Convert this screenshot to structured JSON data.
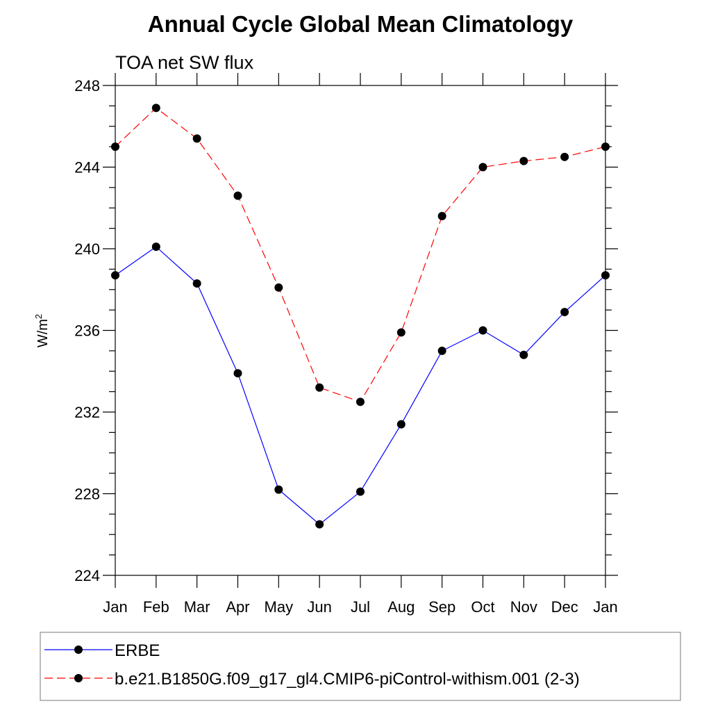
{
  "chart_data": {
    "type": "line",
    "title": "Annual Cycle Global Mean Climatology",
    "subtitle": "TOA net SW flux",
    "xlabel": "",
    "ylabel": "W/m",
    "ylabel_superscript": "2",
    "categories": [
      "Jan",
      "Feb",
      "Mar",
      "Apr",
      "May",
      "Jun",
      "Jul",
      "Aug",
      "Sep",
      "Oct",
      "Nov",
      "Dec",
      "Jan"
    ],
    "ylim": [
      224,
      248
    ],
    "yticks": [
      224,
      228,
      232,
      236,
      240,
      244,
      248
    ],
    "yticks_minor_step": 1,
    "grid": false,
    "legend_position": "bottom",
    "series": [
      {
        "name": "ERBE",
        "color": "#0000ff",
        "dash": "solid",
        "marker": "filled-circle",
        "values": [
          238.7,
          240.1,
          238.3,
          233.9,
          228.2,
          226.5,
          228.1,
          231.4,
          235.0,
          236.0,
          234.8,
          236.9,
          238.7
        ]
      },
      {
        "name": "b.e21.B1850G.f09_g17_gl4.CMIP6-piControl-withism.001 (2-3)",
        "color": "#ff0000",
        "dash": "dashed",
        "marker": "filled-circle",
        "values": [
          245.0,
          246.9,
          245.4,
          242.6,
          238.1,
          233.2,
          232.5,
          235.9,
          241.6,
          244.0,
          244.3,
          244.5,
          245.0
        ]
      }
    ]
  }
}
